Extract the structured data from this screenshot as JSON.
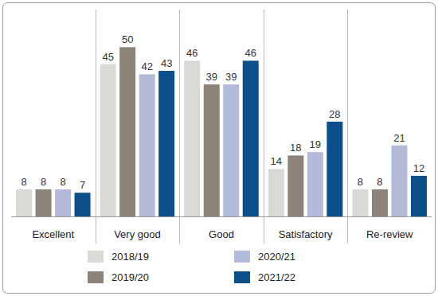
{
  "chart_data": {
    "type": "bar",
    "categories": [
      "Excellent",
      "Very good",
      "Good",
      "Satisfactory",
      "Re-review"
    ],
    "series": [
      {
        "name": "2018/19",
        "color": "#d9d9d6",
        "values": [
          8,
          45,
          46,
          14,
          8
        ]
      },
      {
        "name": "2019/20",
        "color": "#8c8379",
        "values": [
          8,
          50,
          39,
          18,
          8
        ]
      },
      {
        "name": "2020/21",
        "color": "#b3bbd9",
        "values": [
          8,
          42,
          39,
          19,
          21
        ]
      },
      {
        "name": "2021/22",
        "color": "#0c4f8b",
        "values": [
          7,
          43,
          46,
          28,
          12
        ]
      }
    ],
    "ylim": [
      0,
      55
    ],
    "grid": false,
    "legend": "bottom",
    "data_labels": true,
    "tick_labels": "x"
  }
}
